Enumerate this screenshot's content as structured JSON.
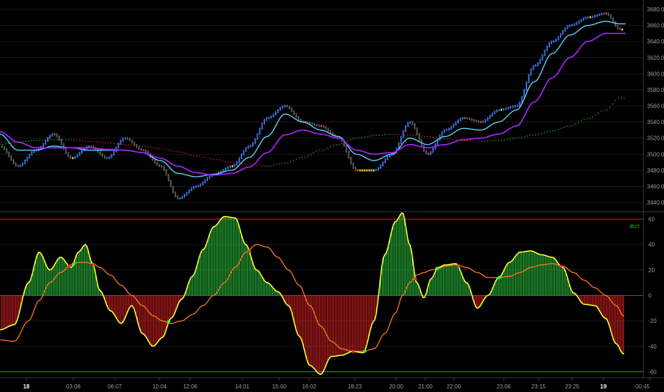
{
  "colors": {
    "background": "#000000",
    "grid": "#1a1a1a",
    "separator": "#3a3a3a",
    "axis_text": "#9a9a9a",
    "brick_up": "#3a6fd8",
    "brick_down": "#5a5a5a",
    "ma_fast": "#5fd3f3",
    "ma_slow": "#a020f0",
    "ma_dots_green": "#22aa22",
    "ma_dots_red": "#cc2222",
    "hist_pos": "#2ecc40",
    "hist_neg": "#dd2222",
    "osc_line": "#ffff33",
    "signal_line": "#ff7722",
    "level_top": "#cc2222",
    "level_bottom": "#22aa22",
    "marker_green": "#33ff33",
    "marker_red": "#ff3333",
    "signal_text": "#22cc22"
  },
  "chart_data": [
    {
      "type": "line",
      "panel": "price",
      "y_ticks": [
        "3680.0",
        "3660.0",
        "3640.0",
        "3620.0",
        "3600.0",
        "3580.0",
        "3560.0",
        "3540.0",
        "3520.0",
        "3500.0",
        "3480.0",
        "3460.0",
        "3440.0"
      ],
      "ylim": [
        3433,
        3688
      ],
      "x": [
        0,
        25,
        50,
        75,
        100,
        125,
        150,
        175,
        200,
        225,
        250,
        275,
        300,
        325,
        350,
        375,
        400,
        425,
        450,
        475,
        500,
        525,
        550,
        575,
        600,
        625,
        650,
        675,
        700,
        725,
        750,
        775,
        800,
        825,
        850,
        870
      ],
      "xlim": [
        0,
        880
      ],
      "series": [
        {
          "values": [
            3510,
            3485,
            3505,
            3525,
            3495,
            3510,
            3495,
            3520,
            3505,
            3485,
            3445,
            3460,
            3475,
            3485,
            3510,
            3545,
            3560,
            3540,
            3535,
            3520,
            3480,
            3480,
            3500,
            3540,
            3500,
            3530,
            3545,
            3540,
            3555,
            3560,
            3610,
            3640,
            3660,
            3670,
            3675,
            3655
          ]
        },
        {
          "values": [
            3525,
            3505,
            3505,
            3510,
            3508,
            3505,
            3505,
            3505,
            3502,
            3492,
            3476,
            3472,
            3475,
            3480,
            3496,
            3522,
            3550,
            3540,
            3530,
            3522,
            3500,
            3492,
            3500,
            3520,
            3512,
            3522,
            3532,
            3530,
            3540,
            3555,
            3590,
            3625,
            3648,
            3660,
            3665,
            3662
          ]
        },
        {
          "values": [
            3528,
            3515,
            3508,
            3508,
            3508,
            3508,
            3506,
            3505,
            3502,
            3495,
            3485,
            3477,
            3474,
            3476,
            3484,
            3502,
            3524,
            3530,
            3525,
            3520,
            3505,
            3500,
            3502,
            3512,
            3508,
            3512,
            3518,
            3520,
            3525,
            3535,
            3565,
            3595,
            3620,
            3640,
            3650,
            3650
          ]
        },
        {
          "values": [
            3512,
            3515,
            3517,
            3518,
            3518,
            3516,
            3514,
            3512,
            3510,
            3507,
            3503,
            3498,
            3494,
            3490,
            3487,
            3485,
            3489,
            3496,
            3505,
            3512,
            3520,
            3523,
            3525,
            3524,
            3522,
            3519,
            3517,
            3516,
            3517,
            3520,
            3524,
            3529,
            3535,
            3544,
            3555,
            3570
          ]
        }
      ]
    },
    {
      "type": "bar",
      "panel": "oscillator",
      "y_ticks": [
        "60",
        "40",
        "20",
        "0",
        "-20",
        "-40",
        "-60"
      ],
      "ylim": [
        -63,
        63
      ],
      "x": [
        0,
        20,
        40,
        55,
        70,
        85,
        100,
        110,
        120,
        130,
        140,
        155,
        170,
        185,
        200,
        215,
        228,
        240,
        255,
        270,
        285,
        300,
        315,
        330,
        345,
        360,
        375,
        390,
        405,
        420,
        435,
        450,
        465,
        480,
        495,
        510,
        525,
        540,
        555,
        565,
        575,
        585,
        595,
        605,
        615,
        625,
        640,
        655,
        670,
        685,
        700,
        715,
        730,
        745,
        760,
        775,
        790,
        805,
        820,
        835,
        850,
        865,
        875
      ],
      "xlim": [
        0,
        880
      ],
      "series": [
        {
          "values": [
            -27,
            -23,
            10,
            34,
            20,
            30,
            22,
            34,
            40,
            25,
            4,
            -12,
            -22,
            -8,
            -30,
            -40,
            -33,
            -18,
            -3,
            15,
            36,
            54,
            62,
            61,
            40,
            20,
            10,
            3,
            -8,
            -32,
            -55,
            -62,
            -48,
            -47,
            -44,
            -45,
            -20,
            32,
            58,
            65,
            40,
            10,
            -2,
            13,
            22,
            24,
            25,
            10,
            -10,
            0,
            14,
            26,
            34,
            35,
            32,
            30,
            22,
            2,
            -7,
            -8,
            -18,
            -38,
            -46
          ]
        },
        {
          "values": [
            -35,
            -36,
            -20,
            -4,
            10,
            18,
            24,
            26,
            26,
            25,
            22,
            16,
            8,
            0,
            -8,
            -16,
            -20,
            -22,
            -20,
            -15,
            -8,
            0,
            10,
            22,
            34,
            40,
            38,
            30,
            20,
            8,
            -8,
            -24,
            -36,
            -42,
            -44,
            -44,
            -42,
            -30,
            -14,
            0,
            10,
            16,
            18,
            20,
            21,
            23,
            24,
            22,
            18,
            14,
            14,
            15,
            18,
            22,
            24,
            25,
            23,
            18,
            12,
            6,
            0,
            -8,
            -16
          ]
        }
      ],
      "levels": [
        60,
        0,
        -60
      ],
      "annotations": [
        "BUY"
      ]
    }
  ],
  "x_axis": {
    "labels": [
      "18",
      "03:08",
      "06:07",
      "10:04",
      "12:06",
      "14:01",
      "15:00",
      "16:02",
      "18:23",
      "20:00",
      "21:00",
      "22:00",
      "23:06",
      "23:15",
      "23:25",
      "19",
      "00:45"
    ],
    "bold": [
      "18",
      "19"
    ]
  }
}
